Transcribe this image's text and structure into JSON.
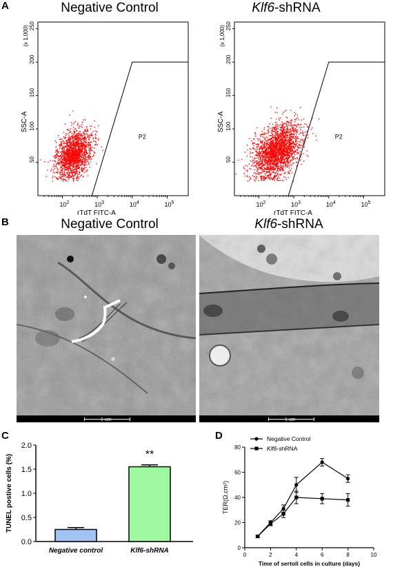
{
  "figure": {
    "panels": {
      "A": "A",
      "B": "B",
      "C": "C",
      "D": "D"
    },
    "titles": {
      "negative": "Negative Control",
      "klf6_italic": "Klf6",
      "klf6_suffix": "-shRNA"
    },
    "em": {
      "scale_label": "1 um"
    }
  },
  "chart_data": [
    {
      "type": "scatter",
      "panel": "A-left",
      "xlabel": "rTdT FITC-A",
      "ylabel": "SSC-A",
      "y_multiplier": "(x 1,000)",
      "x_scale": "log",
      "xlim": [
        20,
        400000
      ],
      "ylim": [
        0,
        260
      ],
      "x_ticks": [
        "10^2",
        "10^3",
        "10^4",
        "10^5"
      ],
      "y_ticks": [
        50,
        100,
        150,
        200,
        250
      ],
      "gate_label": "P2",
      "gate_polygon": [
        [
          700,
          0
        ],
        [
          10000,
          200
        ],
        [
          300000,
          200
        ]
      ],
      "point_color": "#ff0000",
      "cloud": {
        "x_log_center": 2.3,
        "x_log_spread": 0.35,
        "y_center": 62,
        "y_spread": 28,
        "count": 1800
      }
    },
    {
      "type": "scatter",
      "panel": "A-right",
      "xlabel": "rTdT FITC-A",
      "ylabel": "SSC-A",
      "y_multiplier": "(x 1,000)",
      "x_scale": "log",
      "xlim": [
        20,
        400000
      ],
      "ylim": [
        0,
        260
      ],
      "x_ticks": [
        "10^2",
        "10^3",
        "10^4",
        "10^5"
      ],
      "y_ticks": [
        50,
        100,
        150,
        200,
        250
      ],
      "gate_label": "P2",
      "gate_polygon": [
        [
          700,
          0
        ],
        [
          10000,
          200
        ],
        [
          300000,
          200
        ]
      ],
      "point_color": "#ff0000",
      "cloud": {
        "x_log_center": 2.5,
        "x_log_spread": 0.5,
        "y_center": 68,
        "y_spread": 32,
        "count": 2300
      }
    },
    {
      "type": "bar",
      "panel": "C",
      "categories": [
        "Negative control",
        "Klf6-shRNA"
      ],
      "values": [
        0.25,
        1.55
      ],
      "errors": [
        0.04,
        0.04
      ],
      "colors": [
        "#a0c4f4",
        "#a0f8a0"
      ],
      "ylabel": "TUNEL postive cells (%)",
      "ylim": [
        0,
        2.0
      ],
      "y_ticks": [
        "0.0",
        "0.5",
        "1.0",
        "1.5",
        "2.0"
      ],
      "significance": "**"
    },
    {
      "type": "line",
      "panel": "D",
      "xlabel": "Time of sertoli cells in culture (days)",
      "ylabel": "TER(Ω.cm²)",
      "xlim": [
        0,
        10
      ],
      "ylim": [
        0,
        80
      ],
      "x_ticks": [
        0,
        2,
        4,
        6,
        8,
        10
      ],
      "y_ticks": [
        0,
        20,
        40,
        60,
        80
      ],
      "legend_position": "top-left",
      "series": [
        {
          "name": "Negative Control",
          "marker": "circle",
          "x": [
            1,
            2,
            3,
            4,
            6,
            8
          ],
          "y": [
            9,
            20,
            31,
            50,
            68,
            55
          ],
          "err": [
            1,
            1.5,
            3,
            6,
            3,
            3
          ]
        },
        {
          "name": "Klf6-shRNA",
          "marker": "square",
          "x": [
            1,
            2,
            3,
            4,
            6,
            8
          ],
          "y": [
            9,
            19,
            27,
            40,
            39,
            38
          ],
          "err": [
            1,
            1.5,
            3,
            5,
            4,
            5
          ]
        }
      ]
    }
  ]
}
